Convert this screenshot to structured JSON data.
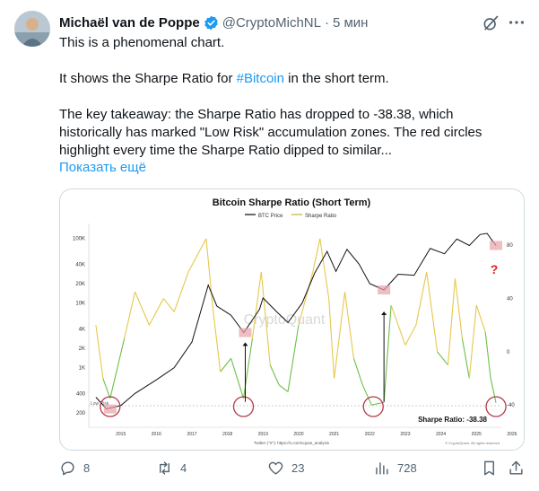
{
  "author": {
    "name": "Michaël van de Poppe",
    "handle": "@CryptoMichNL",
    "separator": "·",
    "time": "5 мин"
  },
  "tweet": {
    "line1": "This is a phenomenal chart.",
    "line2_before": "It shows the Sharpe Ratio for ",
    "hashtag": "#Bitcoin",
    "line2_after": " in the short term.",
    "line3": "The key takeaway: the Sharpe Ratio has dropped to -38.38, which historically has marked \"Low Risk\" accumulation zones. The red circles highlight every time the Sharpe Ratio dipped to similar...",
    "show_more": "Показать ещё"
  },
  "media": {
    "colors": {
      "btc_price": "#111111",
      "sharpe_high": "#e6c84c",
      "sharpe_low": "#6cc04a",
      "circle": "#b23a48",
      "highlight": "#e8a3a8"
    },
    "chart_data": {
      "type": "line",
      "title": "Bitcoin Sharpe Ratio (Short Term)",
      "legend": [
        "BTC Price",
        "Sharpe Ratio"
      ],
      "legend_position": "top-center",
      "watermark": "CryptoQuant",
      "x_ticks": [
        "2015",
        "2016",
        "2017",
        "2018",
        "2019",
        "2020",
        "2021",
        "2022",
        "2023",
        "2024",
        "2025",
        "2026"
      ],
      "y_left_ticks": [
        "100K",
        "40K",
        "20K",
        "10K",
        "4K",
        "2K",
        "1K",
        "400",
        "200"
      ],
      "y_right_ticks": [
        "80",
        "40",
        "0",
        "-40"
      ],
      "y_left_scale": "log",
      "low_risk_label": "Low Risk",
      "sharpe_annotation": "Sharpe Ratio: -38.38",
      "question_mark": "?",
      "footer_twitter": "Twitter (\"X\"): https://x.com/cquan_analysis",
      "footer_copyright": "© CryptoQuant. All rights reserved",
      "btc_price": [
        {
          "x": 2014.8,
          "y": 350
        },
        {
          "x": 2015.1,
          "y": 230
        },
        {
          "x": 2015.5,
          "y": 260
        },
        {
          "x": 2015.9,
          "y": 400
        },
        {
          "x": 2016.5,
          "y": 650
        },
        {
          "x": 2017.0,
          "y": 1000
        },
        {
          "x": 2017.5,
          "y": 2500
        },
        {
          "x": 2017.96,
          "y": 19000
        },
        {
          "x": 2018.2,
          "y": 9000
        },
        {
          "x": 2018.6,
          "y": 6500
        },
        {
          "x": 2018.96,
          "y": 3500
        },
        {
          "x": 2019.4,
          "y": 8000
        },
        {
          "x": 2019.5,
          "y": 12000
        },
        {
          "x": 2019.9,
          "y": 7200
        },
        {
          "x": 2020.2,
          "y": 5000
        },
        {
          "x": 2020.6,
          "y": 10000
        },
        {
          "x": 2020.95,
          "y": 29000
        },
        {
          "x": 2021.3,
          "y": 63000
        },
        {
          "x": 2021.55,
          "y": 31000
        },
        {
          "x": 2021.86,
          "y": 68000
        },
        {
          "x": 2022.2,
          "y": 40000
        },
        {
          "x": 2022.5,
          "y": 20000
        },
        {
          "x": 2022.9,
          "y": 16000
        },
        {
          "x": 2023.3,
          "y": 28000
        },
        {
          "x": 2023.75,
          "y": 27000
        },
        {
          "x": 2024.2,
          "y": 70000
        },
        {
          "x": 2024.6,
          "y": 58000
        },
        {
          "x": 2024.95,
          "y": 98000
        },
        {
          "x": 2025.3,
          "y": 78000
        },
        {
          "x": 2025.6,
          "y": 115000
        },
        {
          "x": 2025.8,
          "y": 120000
        },
        {
          "x": 2025.95,
          "y": 92000
        },
        {
          "x": 2026.05,
          "y": 78000
        }
      ],
      "sharpe_ratio": [
        {
          "x": 2014.8,
          "y": 20
        },
        {
          "x": 2015.0,
          "y": -20
        },
        {
          "x": 2015.2,
          "y": -35
        },
        {
          "x": 2015.6,
          "y": 10
        },
        {
          "x": 2015.9,
          "y": 45
        },
        {
          "x": 2016.3,
          "y": 20
        },
        {
          "x": 2016.7,
          "y": 40
        },
        {
          "x": 2017.0,
          "y": 30
        },
        {
          "x": 2017.4,
          "y": 60
        },
        {
          "x": 2017.9,
          "y": 85
        },
        {
          "x": 2018.1,
          "y": 30
        },
        {
          "x": 2018.3,
          "y": -15
        },
        {
          "x": 2018.6,
          "y": -5
        },
        {
          "x": 2018.95,
          "y": -35
        },
        {
          "x": 2019.2,
          "y": 10
        },
        {
          "x": 2019.45,
          "y": 60
        },
        {
          "x": 2019.7,
          "y": -10
        },
        {
          "x": 2019.95,
          "y": -25
        },
        {
          "x": 2020.2,
          "y": -30
        },
        {
          "x": 2020.5,
          "y": 20
        },
        {
          "x": 2020.9,
          "y": 60
        },
        {
          "x": 2021.1,
          "y": 85
        },
        {
          "x": 2021.35,
          "y": 40
        },
        {
          "x": 2021.5,
          "y": -20
        },
        {
          "x": 2021.8,
          "y": 45
        },
        {
          "x": 2022.05,
          "y": -5
        },
        {
          "x": 2022.3,
          "y": -25
        },
        {
          "x": 2022.55,
          "y": -40
        },
        {
          "x": 2022.9,
          "y": -38
        },
        {
          "x": 2023.1,
          "y": 35
        },
        {
          "x": 2023.5,
          "y": 5
        },
        {
          "x": 2023.8,
          "y": 20
        },
        {
          "x": 2024.1,
          "y": 60
        },
        {
          "x": 2024.4,
          "y": 0
        },
        {
          "x": 2024.7,
          "y": -10
        },
        {
          "x": 2024.9,
          "y": 55
        },
        {
          "x": 2025.1,
          "y": 10
        },
        {
          "x": 2025.3,
          "y": -20
        },
        {
          "x": 2025.5,
          "y": 35
        },
        {
          "x": 2025.75,
          "y": 15
        },
        {
          "x": 2025.9,
          "y": -20
        },
        {
          "x": 2026.05,
          "y": -38.38
        }
      ]
    }
  },
  "actions": {
    "replies": "8",
    "reposts": "4",
    "likes": "23",
    "views": "728"
  }
}
